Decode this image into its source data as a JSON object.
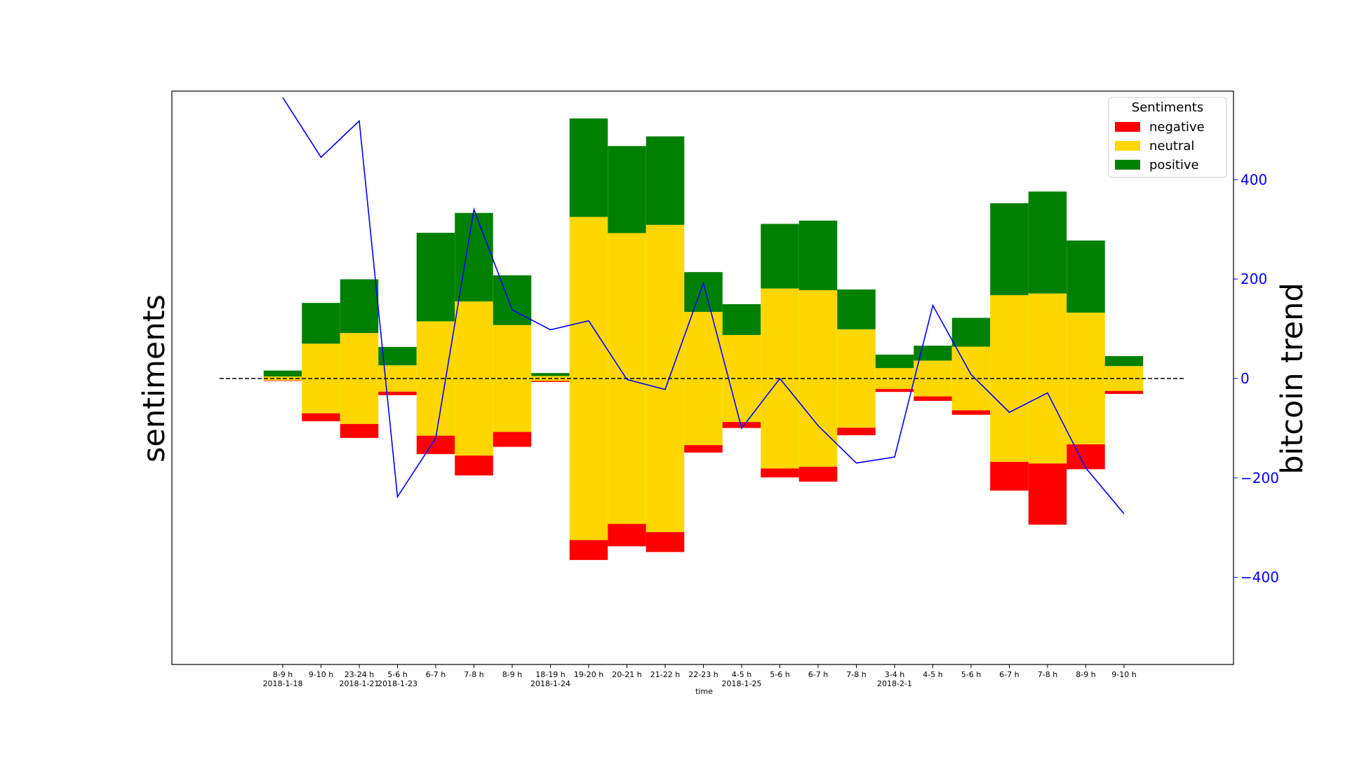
{
  "chart_data": {
    "type": "bar",
    "subtype": "diverging-stacked-bar with line overlay",
    "xlabel": "time",
    "ylabel_left": "sentiments",
    "ylabel_right": "bitcoin trend",
    "categories": [
      {
        "line1": "8-9 h",
        "line2": "2018-1-18"
      },
      {
        "line1": "9-10 h",
        "line2": ""
      },
      {
        "line1": "23-24 h",
        "line2": "2018-1-21"
      },
      {
        "line1": "5-6 h",
        "line2": "2018-1-23"
      },
      {
        "line1": "6-7 h",
        "line2": ""
      },
      {
        "line1": "7-8 h",
        "line2": ""
      },
      {
        "line1": "8-9 h",
        "line2": ""
      },
      {
        "line1": "18-19 h",
        "line2": "2018-1-24"
      },
      {
        "line1": "19-20 h",
        "line2": ""
      },
      {
        "line1": "20-21 h",
        "line2": ""
      },
      {
        "line1": "21-22 h",
        "line2": ""
      },
      {
        "line1": "22-23 h",
        "line2": ""
      },
      {
        "line1": "4-5 h",
        "line2": "2018-1-25"
      },
      {
        "line1": "5-6 h",
        "line2": ""
      },
      {
        "line1": "6-7 h",
        "line2": ""
      },
      {
        "line1": "7-8 h",
        "line2": ""
      },
      {
        "line1": "3-4 h",
        "line2": "2018-2-1"
      },
      {
        "line1": "4-5 h",
        "line2": ""
      },
      {
        "line1": "5-6 h",
        "line2": ""
      },
      {
        "line1": "6-7 h",
        "line2": ""
      },
      {
        "line1": "7-8 h",
        "line2": ""
      },
      {
        "line1": "8-9 h",
        "line2": ""
      },
      {
        "line1": "9-10 h",
        "line2": ""
      }
    ],
    "series": [
      {
        "name": "negative",
        "color": "#ff0000",
        "values": [
          1,
          16,
          28,
          7,
          37,
          40,
          30,
          2,
          40,
          45,
          40,
          15,
          12,
          18,
          30,
          15,
          6,
          9,
          9,
          58,
          123,
          50,
          6
        ]
      },
      {
        "name": "neutral",
        "color": "#ffd700",
        "values": [
          8,
          140,
          183,
          53,
          230,
          310,
          215,
          10,
          650,
          585,
          618,
          268,
          175,
          362,
          355,
          198,
          42,
          72,
          128,
          335,
          342,
          265,
          50
        ]
      },
      {
        "name": "positive",
        "color": "#008000",
        "values": [
          12,
          82,
          108,
          37,
          178,
          178,
          100,
          6,
          198,
          175,
          178,
          80,
          62,
          130,
          140,
          80,
          27,
          30,
          58,
          185,
          205,
          145,
          20
        ]
      }
    ],
    "trend": {
      "name": "bitcoin trend",
      "color": "#0000ff",
      "values": [
        565,
        445,
        518,
        -238,
        -120,
        340,
        138,
        98,
        116,
        -2,
        -22,
        192,
        -100,
        0,
        -95,
        -170,
        -158,
        147,
        8,
        -68,
        -29,
        -180,
        -272
      ]
    },
    "right_axis": {
      "ticks": [
        400,
        200,
        0,
        -200,
        -400
      ],
      "tick_labels": [
        "400",
        "200",
        "0",
        "−200",
        "−400"
      ],
      "ylim": [
        -578,
        578
      ]
    },
    "left_axis": {
      "ylim": [
        -578,
        578
      ],
      "ticks_visible": false
    },
    "zero_line": {
      "style": "dashed",
      "color": "#000000"
    },
    "legend": {
      "title": "Sentiments",
      "placement": "top-right",
      "entries": [
        {
          "label": "negative",
          "color": "#ff0000"
        },
        {
          "label": "neutral",
          "color": "#ffd700"
        },
        {
          "label": "positive",
          "color": "#008000"
        }
      ]
    }
  }
}
